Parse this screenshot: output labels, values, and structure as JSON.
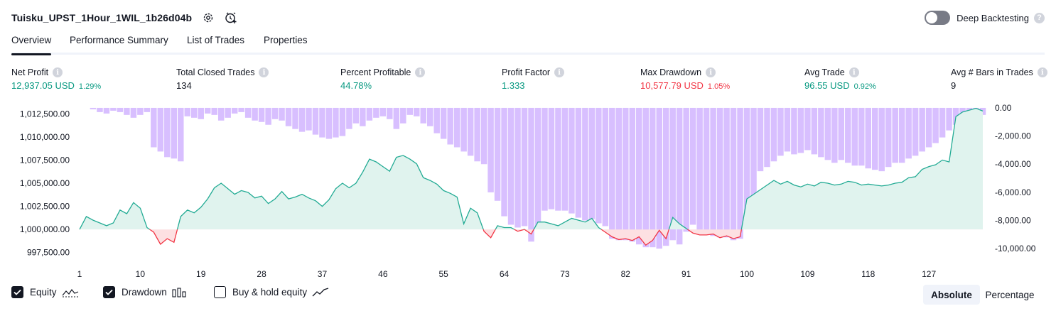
{
  "header": {
    "strategy_name": "Tuisku_UPST_1Hour_1WIL_1b26d04b",
    "deep_backtesting_label": "Deep Backtesting"
  },
  "tabs": [
    "Overview",
    "Performance Summary",
    "List of Trades",
    "Properties"
  ],
  "metrics": [
    {
      "label": "Net Profit",
      "value": "12,937.05 USD",
      "pct": "1.29%",
      "tone": "pos"
    },
    {
      "label": "Total Closed Trades",
      "value": "134",
      "pct": "",
      "tone": "neu"
    },
    {
      "label": "Percent Profitable",
      "value": "44.78%",
      "pct": "",
      "tone": "pos"
    },
    {
      "label": "Profit Factor",
      "value": "1.333",
      "pct": "",
      "tone": "pos"
    },
    {
      "label": "Max Drawdown",
      "value": "10,577.79 USD",
      "pct": "1.05%",
      "tone": "neg"
    },
    {
      "label": "Avg Trade",
      "value": "96.55 USD",
      "pct": "0.92%",
      "tone": "pos"
    },
    {
      "label": "Avg # Bars in Trades",
      "value": "9",
      "pct": "",
      "tone": "neu"
    }
  ],
  "legend": {
    "equity": "Equity",
    "drawdown": "Drawdown",
    "buy_hold": "Buy & hold equity"
  },
  "mode": {
    "absolute": "Absolute",
    "percentage": "Percentage"
  },
  "colors": {
    "equity_line": "#22ab94",
    "equity_fill": "#e0f3ee",
    "below_line": "#f23645",
    "below_fill": "#fde0e2",
    "drawdown_bar": "#d8bfff",
    "drawdown_edge": "#9c82e6"
  },
  "chart_data": {
    "type": "area",
    "x": [
      1,
      2,
      3,
      4,
      5,
      6,
      7,
      8,
      9,
      10,
      11,
      12,
      13,
      14,
      15,
      16,
      17,
      18,
      19,
      20,
      21,
      22,
      23,
      24,
      25,
      26,
      27,
      28,
      29,
      30,
      31,
      32,
      33,
      34,
      35,
      36,
      37,
      38,
      39,
      40,
      41,
      42,
      43,
      44,
      45,
      46,
      47,
      48,
      49,
      50,
      51,
      52,
      53,
      54,
      55,
      56,
      57,
      58,
      59,
      60,
      61,
      62,
      63,
      64,
      65,
      66,
      67,
      68,
      69,
      70,
      71,
      72,
      73,
      74,
      75,
      76,
      77,
      78,
      79,
      80,
      81,
      82,
      83,
      84,
      85,
      86,
      87,
      88,
      89,
      90,
      91,
      92,
      93,
      94,
      95,
      96,
      97,
      98,
      99,
      100,
      101,
      102,
      103,
      104,
      105,
      106,
      107,
      108,
      109,
      110,
      111,
      112,
      113,
      114,
      115,
      116,
      117,
      118,
      119,
      120,
      121,
      122,
      123,
      124,
      125,
      126,
      127,
      128,
      129,
      130,
      131,
      132,
      133,
      134,
      135
    ],
    "x_ticks": [
      "1",
      "10",
      "19",
      "28",
      "37",
      "46",
      "55",
      "64",
      "73",
      "82",
      "91",
      "100",
      "109",
      "118",
      "127"
    ],
    "series": [
      {
        "name": "Equity",
        "axis": "left",
        "values": [
          1000000,
          1001400,
          1001000,
          1000700,
          1000400,
          1000700,
          1002100,
          1001700,
          1002900,
          1002300,
          1000200,
          999700,
          998400,
          999000,
          998600,
          1001400,
          1002100,
          1001800,
          1002400,
          1003300,
          1004500,
          1005000,
          1004400,
          1003800,
          1004200,
          1004000,
          1003400,
          1003600,
          1002800,
          1003300,
          1004100,
          1003300,
          1003500,
          1003800,
          1003400,
          1003100,
          1002500,
          1003200,
          1004400,
          1005000,
          1004500,
          1005000,
          1006200,
          1007600,
          1007300,
          1006800,
          1006300,
          1007800,
          1008000,
          1007600,
          1007100,
          1005600,
          1005300,
          1004900,
          1004200,
          1003900,
          1003500,
          1000600,
          1002300,
          1001800,
          999800,
          999100,
          1000400,
          1000200,
          1000200,
          999800,
          1000000,
          999500,
          1000800,
          1000800,
          1000600,
          1000400,
          1000800,
          1001200,
          1001000,
          1000800,
          1001200,
          1000200,
          999700,
          999200,
          998900,
          999000,
          998800,
          999200,
          998300,
          998800,
          999900,
          999000,
          1001300,
          1000600,
          1000100,
          999600,
          999400,
          999400,
          999500,
          999100,
          999300,
          999000,
          999200,
          1003300,
          1003800,
          1004300,
          1004800,
          1005300,
          1004900,
          1005200,
          1004800,
          1004600,
          1004900,
          1004700,
          1005100,
          1005000,
          1004800,
          1004900,
          1005200,
          1005100,
          1004800,
          1004900,
          1004800,
          1004700,
          1004800,
          1005000,
          1005100,
          1005600,
          1005700,
          1006500,
          1006800,
          1007000,
          1007500,
          1007300,
          1012200,
          1012700,
          1012900,
          1013100,
          1012800
        ],
        "color": "#22ab94"
      },
      {
        "name": "Drawdown",
        "axis": "right",
        "values": [
          0,
          0,
          -100,
          -300,
          -400,
          -200,
          -300,
          -500,
          -700,
          -500,
          -300,
          -2800,
          -3100,
          -3500,
          -3600,
          -3800,
          -600,
          -700,
          -800,
          -400,
          -500,
          -900,
          -700,
          -400,
          -300,
          -700,
          -900,
          -1000,
          -1200,
          -800,
          -900,
          -1300,
          -1500,
          -1700,
          -1600,
          -1900,
          -2100,
          -2200,
          -2100,
          -2000,
          -1500,
          -1100,
          -1300,
          -900,
          -700,
          -600,
          -800,
          -1500,
          -1100,
          -500,
          -600,
          -1100,
          -1300,
          -1800,
          -2200,
          -2600,
          -2800,
          -3100,
          -3400,
          -3800,
          -4000,
          -6000,
          -6600,
          -7700,
          -8300,
          -8500,
          -8400,
          -9500,
          -8400,
          -7300,
          -7200,
          -7300,
          -7300,
          -7500,
          -7800,
          -8000,
          -7900,
          -8200,
          -8400,
          -9300,
          -9400,
          -9400,
          -9500,
          -9700,
          -9900,
          -9900,
          -10000,
          -9800,
          -9400,
          -9700,
          -8800,
          -8300,
          -8700,
          -9000,
          -9100,
          -9200,
          -9200,
          -9400,
          -9300,
          -8400,
          -7700,
          -4500,
          -4200,
          -3800,
          -3400,
          -3100,
          -3300,
          -3200,
          -3000,
          -3300,
          -3500,
          -3700,
          -3900,
          -3700,
          -3900,
          -4100,
          -4100,
          -4300,
          -4400,
          -4500,
          -4200,
          -3900,
          -3900,
          -3600,
          -3400,
          -3100,
          -2800,
          -2500,
          -2100,
          -1600,
          -1200,
          -700,
          -400,
          -200,
          -500
        ],
        "color": "#d8bfff"
      }
    ],
    "left_axis": {
      "ticks": [
        "1,012,500.00",
        "1,010,000.00",
        "1,007,500.00",
        "1,005,000.00",
        "1,002,500.00",
        "1,000,000.00",
        "997,500.00"
      ],
      "range": [
        996400,
        1013600
      ]
    },
    "right_axis": {
      "ticks": [
        "0.00",
        "-2,000.00",
        "-4,000.00",
        "-6,000.00",
        "-8,000.00",
        "-10,000.00"
      ],
      "range": [
        -11000,
        300
      ]
    },
    "title": "",
    "xlabel": "",
    "ylabel": "",
    "grid": false,
    "legend": "bottom-left"
  }
}
